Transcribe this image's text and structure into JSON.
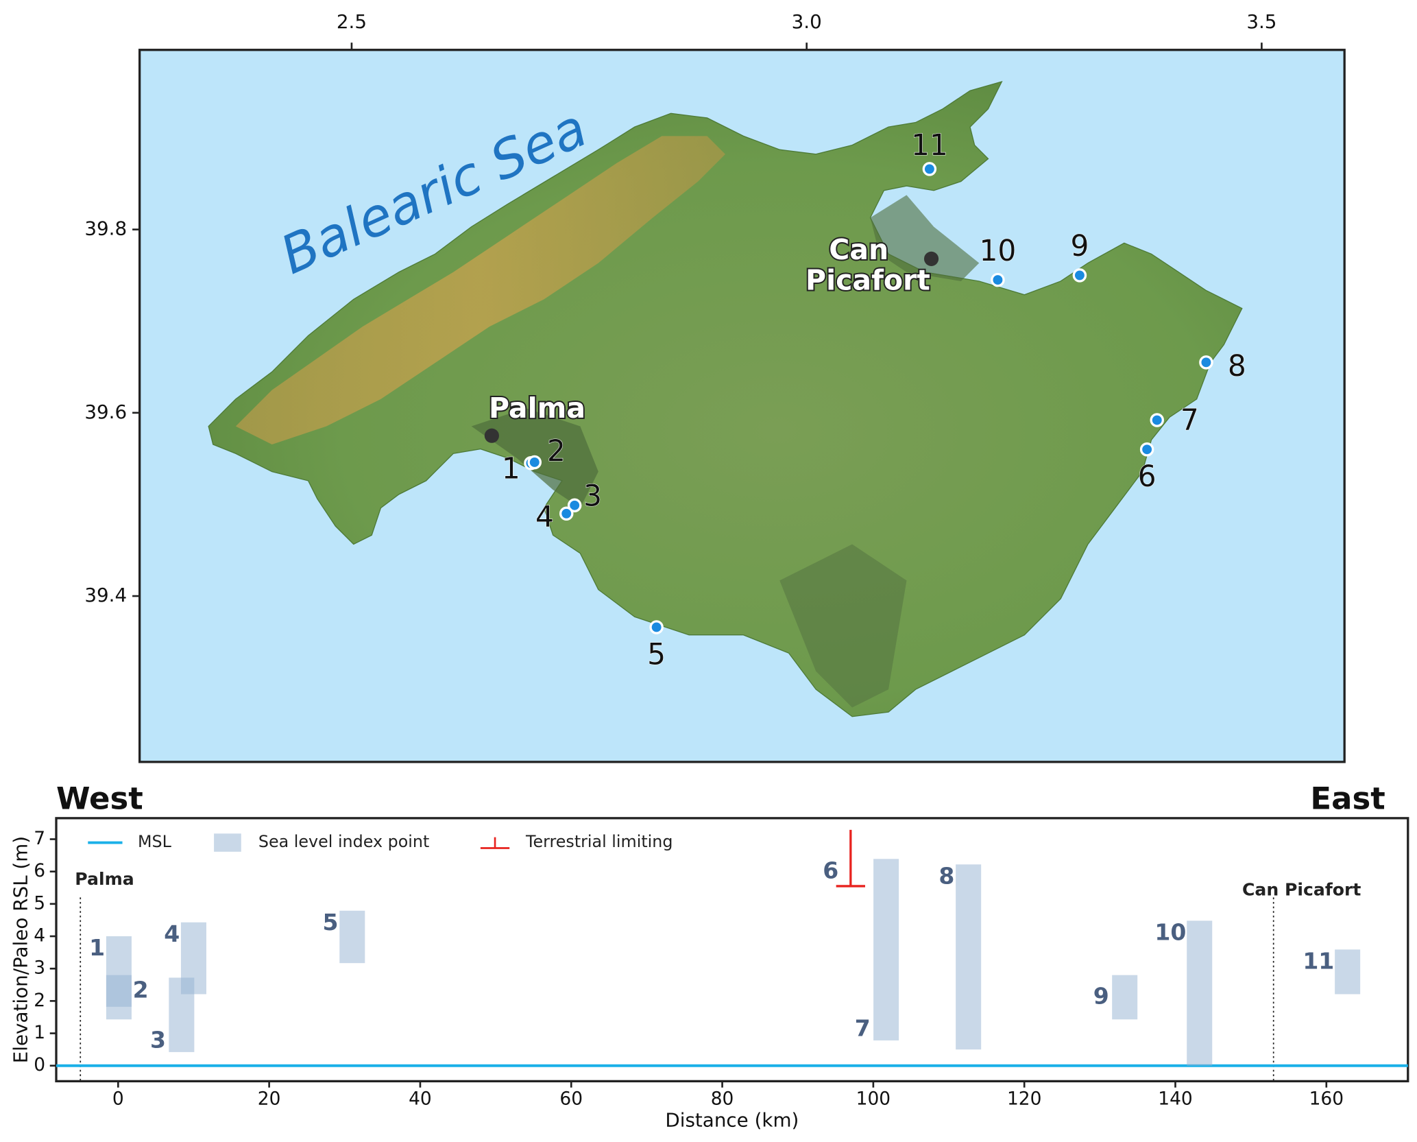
{
  "chart_data": [
    {
      "type": "map",
      "xlim": [
        2.267,
        3.591
      ],
      "ylim": [
        39.219,
        39.996
      ],
      "xticks": [
        2.5,
        {
          "value": 3,
          "label": "3.0"
        },
        3.5
      ],
      "yticks": [
        39.4,
        39.6,
        39.8
      ],
      "sea_label": "Balearic Sea",
      "site_color": "#1a8ae0",
      "sites": [
        {
          "label": "1",
          "lon": 2.697,
          "lat": 39.545
        },
        {
          "label": "2",
          "lon": 2.701,
          "lat": 39.546
        },
        {
          "label": "3",
          "lon": 2.745,
          "lat": 39.499
        },
        {
          "label": "4",
          "lon": 2.736,
          "lat": 39.49
        },
        {
          "label": "5",
          "lon": 2.835,
          "lat": 39.366
        },
        {
          "label": "6",
          "lon": 3.374,
          "lat": 39.56
        },
        {
          "label": "7",
          "lon": 3.385,
          "lat": 39.592
        },
        {
          "label": "8",
          "lon": 3.439,
          "lat": 39.655
        },
        {
          "label": "9",
          "lon": 3.3,
          "lat": 39.75
        },
        {
          "label": "10",
          "lon": 3.21,
          "lat": 39.745
        },
        {
          "label": "11",
          "lon": 3.135,
          "lat": 39.866
        }
      ],
      "towns": [
        {
          "lines": [
            "Palma"
          ],
          "lon": 2.654,
          "lat": 39.575
        },
        {
          "lines": [
            "Can",
            "Picafort"
          ],
          "lon": 3.137,
          "lat": 39.768
        }
      ]
    },
    {
      "type": "range",
      "title_left": "West",
      "title_right": "East",
      "xlabel": "Distance (km)",
      "ylabel": "Elevation/Paleo RSL (m)",
      "xlim": [
        -8.2,
        170.8
      ],
      "ylim": [
        -0.48,
        7.65
      ],
      "xticks": [
        0,
        20,
        40,
        60,
        80,
        100,
        120,
        140,
        160
      ],
      "yticks": [
        0,
        1,
        2,
        3,
        4,
        5,
        6,
        7
      ],
      "msl": {
        "name": "MSL",
        "value": 0,
        "color": "#1ab0e8"
      },
      "index_points": {
        "name": "Sea level index point",
        "color": "#94b2d2",
        "points": [
          {
            "label": "1",
            "distance": 0.1,
            "min": 1.43,
            "max": 4.0
          },
          {
            "label": "2",
            "distance": 0.1,
            "min": 1.82,
            "max": 2.8
          },
          {
            "label": "3",
            "distance": 8.4,
            "min": 0.42,
            "max": 2.72
          },
          {
            "label": "4",
            "distance": 10.0,
            "min": 2.21,
            "max": 4.43
          },
          {
            "label": "5",
            "distance": 31.0,
            "min": 3.17,
            "max": 4.79
          },
          {
            "label": "7",
            "distance": 101.7,
            "min": 0.78,
            "max": 6.39
          },
          {
            "label": "8",
            "distance": 112.6,
            "min": 0.5,
            "max": 6.22
          },
          {
            "label": "9",
            "distance": 133.3,
            "min": 1.43,
            "max": 2.8
          },
          {
            "label": "10",
            "distance": 143.2,
            "min": 0.0,
            "max": 4.48
          },
          {
            "label": "11",
            "distance": 162.8,
            "min": 2.21,
            "max": 3.59
          }
        ]
      },
      "terrestrial": {
        "name": "Terrestrial limiting",
        "color": "#e8231f",
        "points": [
          {
            "label": "6",
            "distance": 97.0,
            "value": 5.55
          }
        ]
      },
      "label_color": "#4a5f80",
      "markers": [
        {
          "label": "Palma",
          "distance": -5.0
        },
        {
          "label": "Can Picafort",
          "distance": 153.0
        }
      ]
    }
  ]
}
